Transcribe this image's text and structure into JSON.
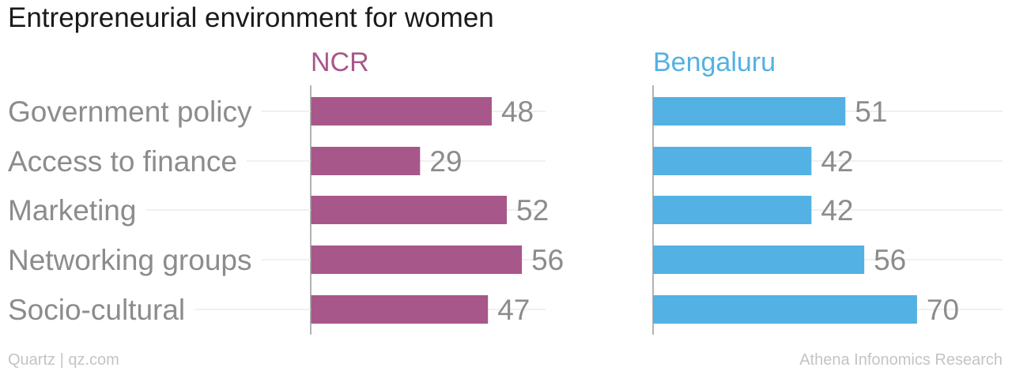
{
  "chart_data": {
    "type": "bar",
    "orientation": "horizontal",
    "title": "Entrepreneurial environment for women",
    "categories": [
      "Government policy",
      "Access to finance",
      "Marketing",
      "Networking groups",
      "Socio-cultural"
    ],
    "series": [
      {
        "name": "NCR",
        "values": [
          48,
          29,
          52,
          56,
          47
        ],
        "color": "#a8578a"
      },
      {
        "name": "Bengaluru",
        "values": [
          51,
          42,
          42,
          56,
          70
        ],
        "color": "#53b1e3"
      }
    ],
    "xlim": [
      0,
      70
    ],
    "grid": true,
    "legend": "panel titles"
  },
  "footer": {
    "left": "Quartz | qz.com",
    "right": "Athena Infonomics Research"
  }
}
